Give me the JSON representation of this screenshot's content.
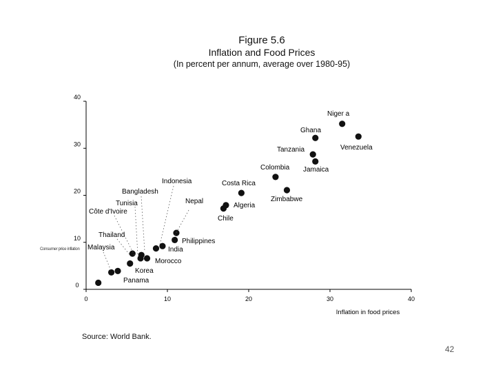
{
  "chart_data": {
    "type": "scatter",
    "title": "Figure 5.6",
    "subtitle": "Inflation and Food Prices",
    "note": "(In percent per annum, average over 1980-95)",
    "xlabel": "Inflation in food prices",
    "ylabel": "",
    "xlim": [
      0,
      40
    ],
    "ylim": [
      0,
      40
    ],
    "xticks": [
      "0",
      "10",
      "20",
      "30",
      "40"
    ],
    "yticks": [
      "0",
      "10",
      "20",
      "30",
      "40"
    ],
    "grid": false,
    "side_label": "Consumer price inflation",
    "points": [
      {
        "label": "Niger a",
        "x": 31.5,
        "y": 35.2
      },
      {
        "label": "Venezuela",
        "x": 33.5,
        "y": 32.5
      },
      {
        "label": "Ghana",
        "x": 28.2,
        "y": 32.2
      },
      {
        "label": "Tanzania",
        "x": 27.9,
        "y": 28.7
      },
      {
        "label": "Jamaica",
        "x": 28.2,
        "y": 27.2
      },
      {
        "label": "Colombia",
        "x": 23.3,
        "y": 23.9
      },
      {
        "label": "Zimbabwe",
        "x": 24.7,
        "y": 21.1
      },
      {
        "label": "Costa Rica",
        "x": 19.1,
        "y": 20.5
      },
      {
        "label": "Algeria",
        "x": 17.2,
        "y": 17.9
      },
      {
        "label": "Chile",
        "x": 16.9,
        "y": 17.2
      },
      {
        "label": "Philippines",
        "x": 11.1,
        "y": 12.0
      },
      {
        "label": "",
        "x": 10.9,
        "y": 10.5
      },
      {
        "label": "",
        "x": 9.4,
        "y": 9.2
      },
      {
        "label": "India",
        "x": 8.6,
        "y": 8.7
      },
      {
        "label": "",
        "x": 5.7,
        "y": 7.6
      },
      {
        "label": "",
        "x": 6.8,
        "y": 7.3
      },
      {
        "label": "",
        "x": 6.7,
        "y": 6.6
      },
      {
        "label": "Morocco",
        "x": 7.5,
        "y": 6.6
      },
      {
        "label": "",
        "x": 5.4,
        "y": 5.5
      },
      {
        "label": "Korea",
        "x": 3.9,
        "y": 3.9
      },
      {
        "label": "Panama",
        "x": 3.1,
        "y": 3.6
      },
      {
        "label": "",
        "x": 1.5,
        "y": 1.4
      }
    ],
    "leader_labels": [
      "Indonesia",
      "Bangladesh",
      "Tunisia",
      "Côte d'Ivoire",
      "Nepal",
      "Thailand",
      "Malaysia"
    ]
  },
  "source": "Source: World Bank.",
  "page_number": "42"
}
